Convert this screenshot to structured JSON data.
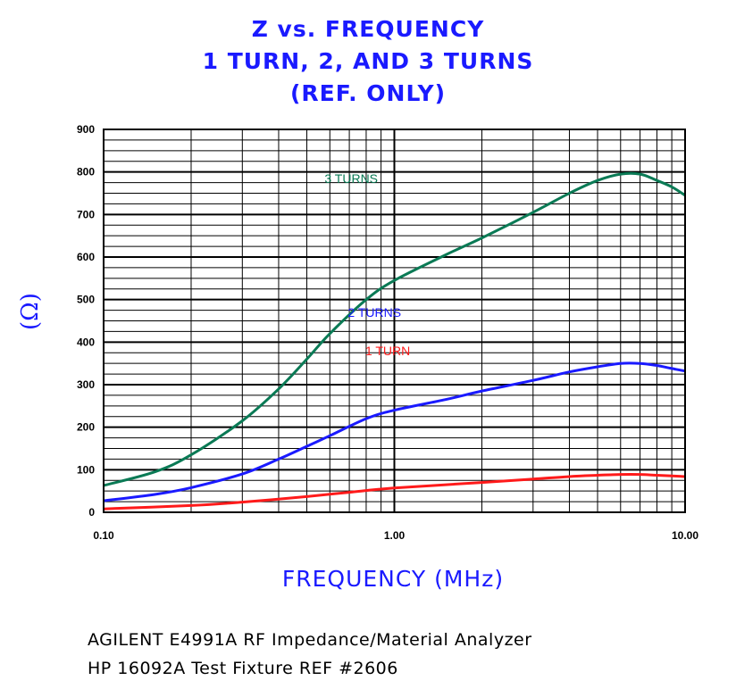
{
  "chart_data": {
    "type": "line",
    "title": [
      "Z vs. FREQUENCY",
      "1 TURN, 2, AND 3 TURNS",
      "(REF. ONLY)"
    ],
    "xlabel": "FREQUENCY (MHz)",
    "ylabel": "(Ω)",
    "x_scale": "log",
    "xlim": [
      0.1,
      10
    ],
    "ylim": [
      0,
      900
    ],
    "x_ticks": [
      0.1,
      1,
      10
    ],
    "x_tick_labels": [
      "0.10",
      "1.00",
      "10.00"
    ],
    "y_ticks": [
      0,
      100,
      200,
      300,
      400,
      500,
      600,
      700,
      800,
      900
    ],
    "y_tick_labels": [
      "0",
      "100",
      "200",
      "300",
      "400",
      "500",
      "600",
      "700",
      "800",
      "900"
    ],
    "grid": true,
    "series": [
      {
        "name": "3 TURNS",
        "color": "#0a7a55",
        "label_at": [
          0.38,
          0.86
        ],
        "x": [
          0.1,
          0.15,
          0.2,
          0.3,
          0.4,
          0.5,
          0.6,
          0.8,
          1.0,
          1.5,
          2.0,
          3.0,
          4.0,
          5.0,
          6.0,
          7.0,
          8.0,
          9.0,
          10.0
        ],
        "y": [
          63,
          95,
          135,
          215,
          290,
          360,
          420,
          500,
          545,
          605,
          645,
          705,
          750,
          780,
          795,
          795,
          780,
          765,
          745
        ]
      },
      {
        "name": "2 TURNS",
        "color": "#1a1aff",
        "label_at": [
          0.42,
          0.51
        ],
        "x": [
          0.1,
          0.15,
          0.2,
          0.3,
          0.4,
          0.5,
          0.6,
          0.8,
          1.0,
          1.5,
          2.0,
          3.0,
          4.0,
          5.0,
          6.0,
          7.0,
          8.0,
          9.0,
          10.0
        ],
        "y": [
          27,
          42,
          58,
          90,
          125,
          155,
          180,
          220,
          240,
          265,
          285,
          310,
          330,
          342,
          350,
          350,
          345,
          338,
          332
        ]
      },
      {
        "name": "1 TURN",
        "color": "#ff1a1a",
        "label_at": [
          0.45,
          0.41
        ],
        "x": [
          0.1,
          0.2,
          0.3,
          0.5,
          0.7,
          1.0,
          2.0,
          3.0,
          4.0,
          5.0,
          6.0,
          7.0,
          8.0,
          10.0
        ],
        "y": [
          8,
          16,
          24,
          37,
          47,
          57,
          70,
          78,
          84,
          87,
          89,
          89,
          87,
          84
        ]
      }
    ]
  },
  "footer": {
    "line1": "AGILENT E4991A RF Impedance/Material Analyzer",
    "line2": "HP 16092A Test Fixture REF #2606"
  }
}
